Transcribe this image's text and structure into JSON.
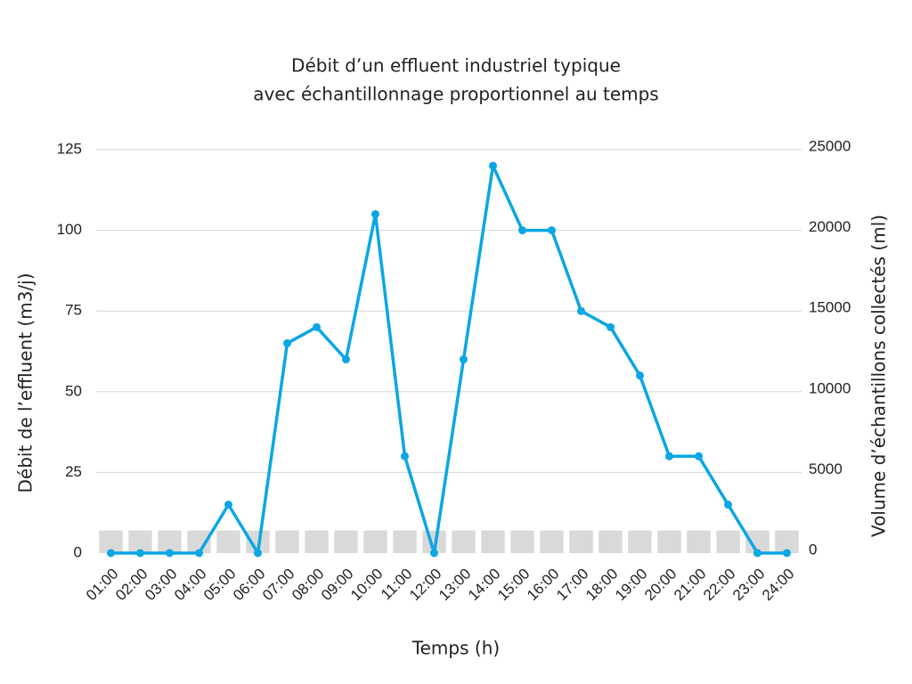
{
  "chart_data": {
    "type": "combo",
    "title": [
      "Débit d’un effluent industriel typique",
      "avec échantillonnage proportionnel au temps"
    ],
    "x_label": "Temps (h)",
    "y_label": "Débit de l’effluent (m3/j)",
    "y2_label": "Volume d’échantillons collectés (ml)",
    "categories": [
      "01:00",
      "02:00",
      "03:00",
      "04:00",
      "05:00",
      "06:00",
      "07:00",
      "08:00",
      "09:00",
      "10:00",
      "11:00",
      "12:00",
      "13:00",
      "14:00",
      "15:00",
      "16:00",
      "17:00",
      "18:00",
      "19:00",
      "20:00",
      "21:00",
      "22:00",
      "23:00",
      "24:00"
    ],
    "series": [
      {
        "type": "bar",
        "axis": "y2",
        "color": "#d9d9d9",
        "values": [
          1400,
          1400,
          1400,
          1400,
          1400,
          1400,
          1400,
          1400,
          1400,
          1400,
          1400,
          1400,
          1400,
          1400,
          1400,
          1400,
          1400,
          1400,
          1400,
          1400,
          1400,
          1400,
          1400,
          1400
        ]
      },
      {
        "type": "line",
        "color": "#0aa6e6",
        "values": [
          0,
          0,
          0,
          0,
          15,
          0,
          65,
          70,
          60,
          105,
          30,
          0,
          60,
          120,
          100,
          100,
          75,
          70,
          55,
          30,
          30,
          15,
          0,
          0
        ]
      }
    ],
    "ylim": [
      0,
      125
    ],
    "yticks": [
      0,
      25,
      50,
      75,
      100,
      125
    ],
    "y2lim": [
      0,
      25000
    ],
    "y2ticks": [
      0,
      5000,
      10000,
      15000,
      20000,
      25000
    ],
    "grid": true
  }
}
